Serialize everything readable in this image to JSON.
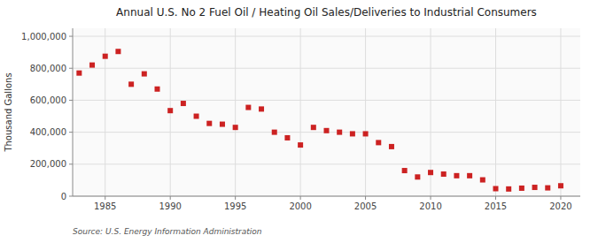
{
  "chart_data": {
    "type": "scatter",
    "title": "Annual U.S. No 2 Fuel Oil / Heating Oil Sales/Deliveries to Industrial Consumers",
    "y_label": "Thousand Gallons",
    "source": "Source: U.S. Energy Information Administration",
    "color": "#cc2222",
    "marker": "square",
    "grid": true,
    "xlim": [
      1982.5,
      2021.5
    ],
    "ylim": [
      0,
      1050000
    ],
    "xticks": [
      1985,
      1990,
      1995,
      2000,
      2005,
      2010,
      2015,
      2020
    ],
    "yticks": [
      0,
      {
        "value": 200000,
        "label": "200,000"
      },
      {
        "value": 400000,
        "label": "400,000"
      },
      {
        "value": 600000,
        "label": "600,000"
      },
      {
        "value": 800000,
        "label": "800,000"
      },
      {
        "value": 1000000,
        "label": "1,000,000"
      }
    ],
    "x": [
      1983,
      1984,
      1985,
      1986,
      1987,
      1988,
      1989,
      1990,
      1991,
      1992,
      1993,
      1994,
      1995,
      1996,
      1997,
      1998,
      1999,
      2000,
      2001,
      2002,
      2003,
      2004,
      2005,
      2006,
      2007,
      2008,
      2009,
      2010,
      2011,
      2012,
      2013,
      2014,
      2015,
      2016,
      2017,
      2018,
      2019,
      2020
    ],
    "values": [
      770000,
      820000,
      875000,
      905000,
      700000,
      765000,
      670000,
      535000,
      580000,
      500000,
      455000,
      450000,
      430000,
      555000,
      545000,
      400000,
      365000,
      320000,
      430000,
      410000,
      400000,
      390000,
      390000,
      335000,
      310000,
      160000,
      120000,
      148000,
      138000,
      128000,
      128000,
      102000,
      47000,
      45000,
      50000,
      55000,
      52000,
      65000
    ]
  }
}
